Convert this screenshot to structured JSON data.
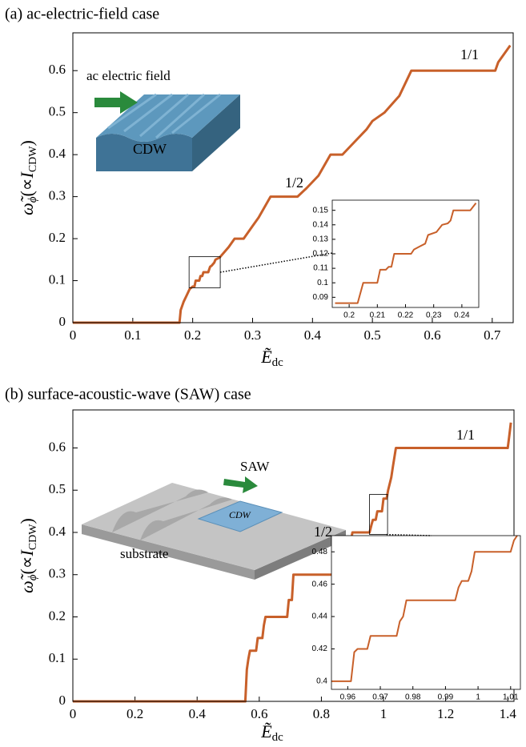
{
  "chart_data": [
    {
      "type": "line",
      "title": "(a) ac-electric-field case",
      "xlabel": {
        "symbol": "Ẽ",
        "sub": "dc"
      },
      "ylabel": {
        "symbol": "ω̃",
        "symbol_sub": "ϕ",
        "open": "(∝",
        "current": "I",
        "current_sub": "CDW",
        "close": ")"
      },
      "annotations": [
        "1/1",
        "1/2"
      ],
      "illustration_labels": [
        "ac electric field",
        "CDW"
      ],
      "xlim": [
        0,
        0.735
      ],
      "ylim": [
        0,
        0.69
      ],
      "xticks": [
        0,
        0.1,
        0.2,
        0.3,
        0.4,
        0.5,
        0.6,
        0.7
      ],
      "yticks": [
        0,
        0.1,
        0.2,
        0.3,
        0.4,
        0.5,
        0.6
      ],
      "series": [
        {
          "color": "#c8602a",
          "x": [
            0,
            0.178,
            0.18,
            0.185,
            0.19,
            0.195,
            0.2,
            0.203,
            0.205,
            0.211,
            0.213,
            0.216,
            0.218,
            0.226,
            0.229,
            0.232,
            0.236,
            0.238,
            0.245,
            0.26,
            0.27,
            0.285,
            0.3,
            0.31,
            0.33,
            0.375,
            0.39,
            0.41,
            0.43,
            0.45,
            0.47,
            0.49,
            0.5,
            0.52,
            0.545,
            0.565,
            0.705,
            0.71,
            0.72,
            0.73
          ],
          "values": [
            0,
            0,
            0.03,
            0.05,
            0.065,
            0.08,
            0.086,
            0.086,
            0.1,
            0.1,
            0.111,
            0.111,
            0.12,
            0.12,
            0.133,
            0.136,
            0.143,
            0.15,
            0.155,
            0.18,
            0.2,
            0.2,
            0.23,
            0.25,
            0.3,
            0.3,
            0.32,
            0.35,
            0.4,
            0.4,
            0.43,
            0.46,
            0.48,
            0.5,
            0.54,
            0.6,
            0.6,
            0.62,
            0.64,
            0.66
          ]
        }
      ]
    },
    {
      "type": "line",
      "xlim": [
        0.194,
        0.246
      ],
      "ylim": [
        0.083,
        0.157
      ],
      "xticks": [
        0.2,
        0.21,
        0.22,
        0.23,
        0.24
      ],
      "yticks": [
        0.09,
        0.1,
        0.11,
        0.12,
        0.13,
        0.14,
        0.15
      ],
      "series": [
        {
          "color": "#c8602a",
          "x": [
            0.195,
            0.203,
            0.205,
            0.21,
            0.211,
            0.213,
            0.214,
            0.215,
            0.216,
            0.222,
            0.223,
            0.225,
            0.227,
            0.228,
            0.231,
            0.233,
            0.235,
            0.236,
            0.237,
            0.243,
            0.245
          ],
          "values": [
            0.086,
            0.086,
            0.1,
            0.1,
            0.109,
            0.109,
            0.111,
            0.111,
            0.12,
            0.12,
            0.123,
            0.125,
            0.127,
            0.133,
            0.135,
            0.14,
            0.141,
            0.143,
            0.15,
            0.15,
            0.155
          ]
        }
      ]
    },
    {
      "type": "line",
      "title": "(b) surface-acoustic-wave (SAW) case",
      "xlabel": {
        "symbol": "Ẽ",
        "sub": "dc"
      },
      "ylabel": {
        "symbol": "ω̃",
        "symbol_sub": "ϕ",
        "open": "(∝",
        "current": "I",
        "current_sub": "CDW",
        "close": ")"
      },
      "annotations": [
        "1/1",
        "1/2"
      ],
      "illustration_labels": [
        "SAW",
        "CDW",
        "substrate"
      ],
      "xlim": [
        0,
        1.42
      ],
      "ylim": [
        0,
        0.69
      ],
      "xticks": [
        0,
        0.2,
        0.4,
        0.6,
        0.8,
        1,
        1.2,
        1.4
      ],
      "yticks": [
        0,
        0.1,
        0.2,
        0.3,
        0.4,
        0.5,
        0.6
      ],
      "series": [
        {
          "color": "#c8602a",
          "x": [
            0,
            0.555,
            0.56,
            0.565,
            0.57,
            0.59,
            0.595,
            0.61,
            0.615,
            0.62,
            0.69,
            0.695,
            0.705,
            0.71,
            0.875,
            0.88,
            0.89,
            0.9,
            0.955,
            0.962,
            0.966,
            0.975,
            0.98,
            0.995,
            1.0,
            1.01,
            1.015,
            1.025,
            1.03,
            1.04,
            1.4,
            1.405,
            1.41
          ],
          "values": [
            0,
            0,
            0.075,
            0.1,
            0.12,
            0.12,
            0.15,
            0.15,
            0.18,
            0.2,
            0.2,
            0.24,
            0.24,
            0.3,
            0.3,
            0.33,
            0.36,
            0.4,
            0.4,
            0.42,
            0.43,
            0.43,
            0.45,
            0.45,
            0.48,
            0.48,
            0.5,
            0.53,
            0.555,
            0.6,
            0.6,
            0.63,
            0.66
          ]
        }
      ]
    },
    {
      "type": "line",
      "xlim": [
        0.955,
        1.013
      ],
      "ylim": [
        0.395,
        0.49
      ],
      "xticks": [
        0.96,
        0.97,
        0.98,
        0.99,
        1,
        1.01
      ],
      "yticks": [
        0.4,
        0.42,
        0.44,
        0.46,
        0.48
      ],
      "series": [
        {
          "color": "#c8602a",
          "x": [
            0.955,
            0.961,
            0.962,
            0.963,
            0.966,
            0.967,
            0.975,
            0.976,
            0.977,
            0.978,
            0.993,
            0.994,
            0.995,
            0.997,
            0.998,
            0.999,
            1.01,
            1.011,
            1.012
          ],
          "values": [
            0.4,
            0.4,
            0.418,
            0.42,
            0.42,
            0.428,
            0.428,
            0.437,
            0.44,
            0.45,
            0.45,
            0.458,
            0.462,
            0.462,
            0.468,
            0.48,
            0.48,
            0.487,
            0.49
          ]
        }
      ]
    }
  ]
}
